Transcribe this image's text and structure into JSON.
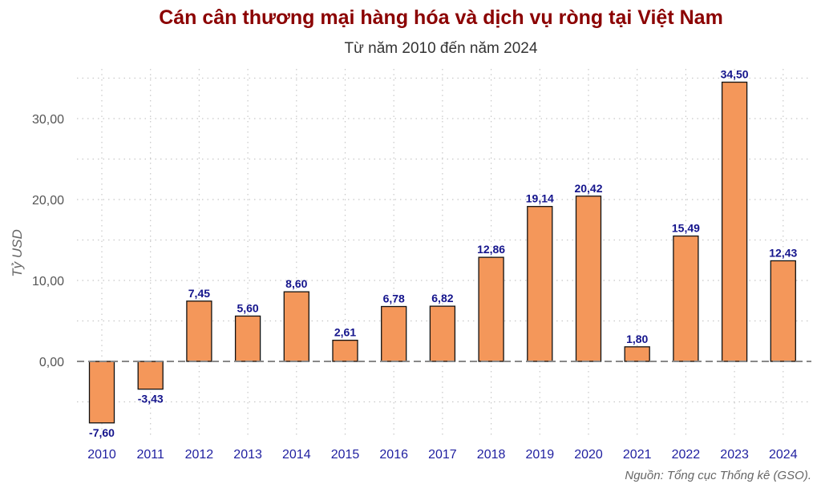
{
  "chart_data": {
    "type": "bar",
    "title": "Cán cân thương mại hàng hóa và dịch vụ ròng tại Việt Nam",
    "subtitle": "Từ năm 2010 đến năm 2024",
    "ylabel": "Tỷ USD",
    "xlabel": "",
    "caption": "Nguồn: Tổng cục Thống kê (GSO).",
    "categories": [
      "2010",
      "2011",
      "2012",
      "2013",
      "2014",
      "2015",
      "2016",
      "2017",
      "2018",
      "2019",
      "2020",
      "2021",
      "2022",
      "2023",
      "2024"
    ],
    "values": [
      -7.6,
      -3.43,
      7.45,
      5.6,
      8.6,
      2.61,
      6.78,
      6.82,
      12.86,
      19.14,
      20.42,
      1.8,
      15.49,
      34.5,
      12.43
    ],
    "value_labels": [
      "-7,60",
      "-3,43",
      "7,45",
      "5,60",
      "8,60",
      "2,61",
      "6,78",
      "6,82",
      "12,86",
      "19,14",
      "20,42",
      "1,80",
      "15,49",
      "34,50",
      "12,43"
    ],
    "yticks": [
      0,
      10,
      20,
      30
    ],
    "ytick_labels": [
      "0,00",
      "10,00",
      "20,00",
      "30,00"
    ],
    "ylim": [
      -8,
      35
    ],
    "grid": true,
    "zero_line": "dashed",
    "colors": {
      "bar_fill": "#f4975a",
      "bar_stroke": "#111111",
      "title": "#8b0000",
      "labels": "#14148c"
    }
  }
}
